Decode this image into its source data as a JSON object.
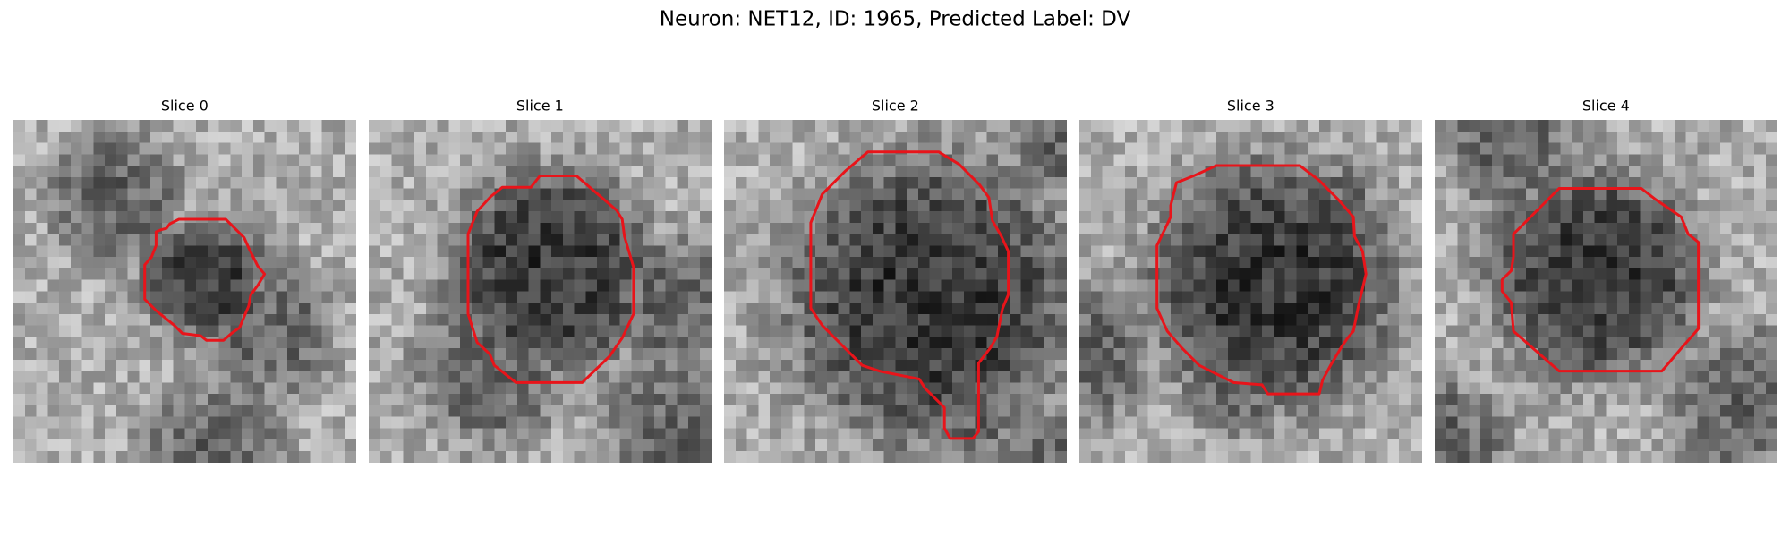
{
  "title": "Neuron: NET12, ID: 1965, Predicted Label: DV",
  "panels": [
    {
      "title": "Slice 0"
    },
    {
      "title": "Slice 1"
    },
    {
      "title": "Slice 2"
    },
    {
      "title": "Slice 3"
    },
    {
      "title": "Slice 4"
    }
  ]
}
